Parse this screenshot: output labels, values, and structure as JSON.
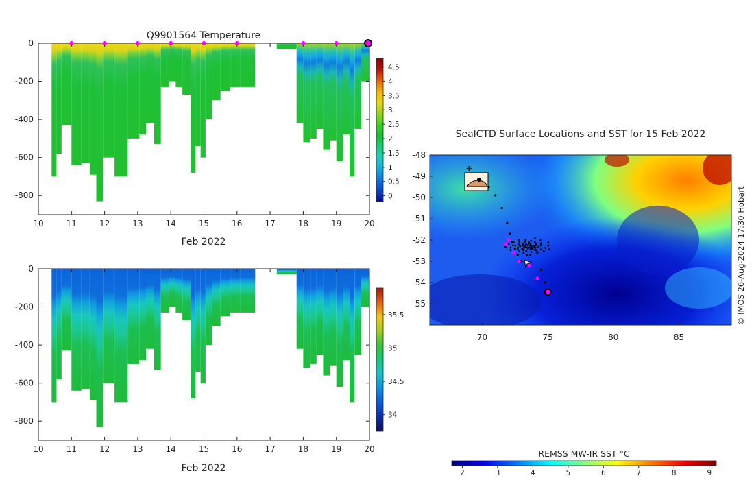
{
  "colors": {
    "jet": [
      "#00007f",
      "#0000ff",
      "#007fff",
      "#00ffff",
      "#7fff7f",
      "#ffff00",
      "#ff7f00",
      "#ff0000",
      "#7f0000"
    ],
    "parula": [
      "#0a0a8c",
      "#0a46c8",
      "#0e78dc",
      "#15aee0",
      "#1ad0c0",
      "#19cc7a",
      "#1bbb33",
      "#3ad426",
      "#9ad11d",
      "#e6d80b",
      "#f3b40a",
      "#e6640a",
      "#b4140a",
      "#820a0a"
    ],
    "marker": "#ff00ff",
    "track": "#000000"
  },
  "chart_data": [
    {
      "id": "temperature-section",
      "type": "heatmap",
      "title": "Q9901564  Temperature",
      "xlabel": "Feb 2022",
      "ylabel": "",
      "xlim": [
        10,
        20
      ],
      "ylim": [
        -900,
        0
      ],
      "xticks": [
        "10",
        "11",
        "12",
        "13",
        "14",
        "15",
        "16",
        "17",
        "18",
        "19",
        "20"
      ],
      "yticks": [
        "0",
        "-200",
        "-400",
        "-600",
        "-800"
      ],
      "profile_markers_x": [
        11,
        12,
        13,
        14,
        15,
        16,
        18,
        19
      ],
      "last_profile_x": 20,
      "colorbar": {
        "min": -0.2,
        "max": 4.8,
        "ticks": [
          "0",
          "0.5",
          "1",
          "1.5",
          "2",
          "2.5",
          "3",
          "3.5",
          "4",
          "4.5"
        ]
      },
      "profiles": [
        {
          "x": 10.4,
          "depth": 700
        },
        {
          "x": 10.55,
          "depth": 580
        },
        {
          "x": 10.7,
          "depth": 430
        },
        {
          "x": 11.0,
          "depth": 640
        },
        {
          "x": 11.3,
          "depth": 630
        },
        {
          "x": 11.55,
          "depth": 690
        },
        {
          "x": 11.75,
          "depth": 830
        },
        {
          "x": 11.95,
          "depth": 600
        },
        {
          "x": 12.3,
          "depth": 700
        },
        {
          "x": 12.7,
          "depth": 500
        },
        {
          "x": 13.05,
          "depth": 480
        },
        {
          "x": 13.25,
          "depth": 420
        },
        {
          "x": 13.5,
          "depth": 530
        },
        {
          "x": 13.7,
          "depth": 230
        },
        {
          "x": 13.95,
          "depth": 200
        },
        {
          "x": 14.15,
          "depth": 230
        },
        {
          "x": 14.35,
          "depth": 270
        },
        {
          "x": 14.6,
          "depth": 680
        },
        {
          "x": 14.75,
          "depth": 540
        },
        {
          "x": 14.9,
          "depth": 600
        },
        {
          "x": 15.05,
          "depth": 400
        },
        {
          "x": 15.25,
          "depth": 300
        },
        {
          "x": 15.5,
          "depth": 250
        },
        {
          "x": 15.8,
          "depth": 230
        },
        {
          "x": 16.1,
          "depth": 230
        },
        {
          "x": 17.2,
          "depth": 30
        },
        {
          "x": 17.5,
          "depth": 30
        },
        {
          "x": 17.8,
          "depth": 420
        },
        {
          "x": 18.0,
          "depth": 520
        },
        {
          "x": 18.2,
          "depth": 500
        },
        {
          "x": 18.4,
          "depth": 450
        },
        {
          "x": 18.6,
          "depth": 560
        },
        {
          "x": 18.8,
          "depth": 510
        },
        {
          "x": 19.0,
          "depth": 620
        },
        {
          "x": 19.2,
          "depth": 480
        },
        {
          "x": 19.4,
          "depth": 700
        },
        {
          "x": 19.55,
          "depth": 450
        },
        {
          "x": 19.75,
          "depth": 200
        }
      ]
    },
    {
      "id": "salinity-section",
      "type": "heatmap",
      "title": "",
      "xlabel": "Feb 2022",
      "ylabel": "",
      "xlim": [
        10,
        20
      ],
      "ylim": [
        -900,
        0
      ],
      "xticks": [
        "10",
        "11",
        "12",
        "13",
        "14",
        "15",
        "16",
        "17",
        "18",
        "19",
        "20"
      ],
      "yticks": [
        "0",
        "-200",
        "-400",
        "-600",
        "-800"
      ],
      "colorbar": {
        "min": 33.75,
        "max": 35.9,
        "ticks": [
          "34",
          "34.5",
          "35",
          "35.5"
        ]
      }
    },
    {
      "id": "sst-map",
      "type": "heatmap",
      "title": "SealCTD Surface Locations and SST for 15 Feb 2022",
      "xlabel": "",
      "ylabel": "",
      "xlim": [
        66,
        89
      ],
      "ylim": [
        -56,
        -48
      ],
      "xticks": [
        "70",
        "75",
        "80",
        "85"
      ],
      "yticks": [
        "-48",
        "-49",
        "-50",
        "-51",
        "-52",
        "-53",
        "-54",
        "-55"
      ],
      "colorbar": {
        "label": "REMSS MW-IR SST °C",
        "min": 1.7,
        "max": 9.2,
        "ticks": [
          "2",
          "3",
          "4",
          "5",
          "6",
          "7",
          "8",
          "9"
        ]
      },
      "track": [
        [
          69.4,
          -49.1
        ],
        [
          70.0,
          -49.3
        ],
        [
          70.5,
          -49.5
        ],
        [
          71.0,
          -49.9
        ],
        [
          71.5,
          -50.5
        ],
        [
          71.9,
          -51.2
        ],
        [
          72.1,
          -51.7
        ],
        [
          72.3,
          -52.1
        ],
        [
          72.5,
          -52.4
        ],
        [
          72.7,
          -52.7
        ],
        [
          73.0,
          -53.0
        ],
        [
          73.4,
          -52.7
        ],
        [
          73.8,
          -52.4
        ],
        [
          74.2,
          -52.6
        ],
        [
          74.5,
          -53.4
        ],
        [
          74.8,
          -54.0
        ],
        [
          75.0,
          -54.5
        ]
      ],
      "cluster_center": [
        73.5,
        -52.3
      ],
      "profiles": [
        [
          72.0,
          -52.0
        ],
        [
          71.8,
          -52.2
        ],
        [
          72.4,
          -52.6
        ],
        [
          72.8,
          -53.0
        ],
        [
          73.6,
          -53.2
        ],
        [
          74.2,
          -53.8
        ]
      ],
      "current_position": [
        75.0,
        -54.45
      ]
    }
  ],
  "credit": "© IMOS 26-Aug-2024 17:30 Hobart"
}
